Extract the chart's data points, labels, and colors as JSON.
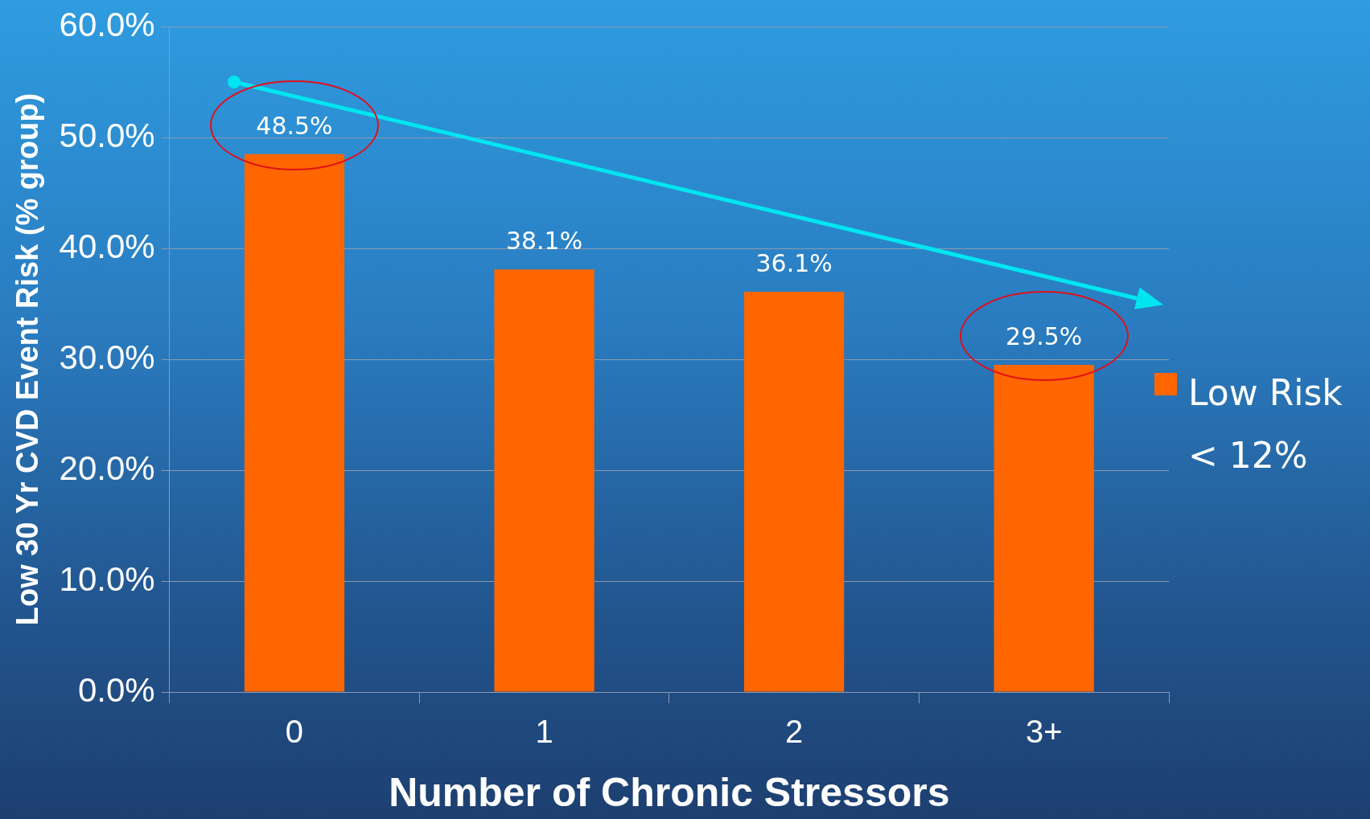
{
  "chart_data": {
    "type": "bar",
    "xlabel": "Number of Chronic Stressors",
    "ylabel": "Low 30 Yr CVD Event Risk (% group)",
    "categories": [
      "0",
      "1",
      "2",
      "3+"
    ],
    "series": [
      {
        "name": "Low Risk < 12%",
        "color": "#ff6600",
        "values": [
          48.5,
          38.1,
          36.1,
          29.5
        ]
      }
    ],
    "ylim": [
      0,
      60
    ],
    "yticks": [
      {
        "value": 0,
        "label": "0.0%"
      },
      {
        "value": 10,
        "label": "10.0%"
      },
      {
        "value": 20,
        "label": "20.0%"
      },
      {
        "value": 30,
        "label": "30.0%"
      },
      {
        "value": 40,
        "label": "40.0%"
      },
      {
        "value": 50,
        "label": "50.0%"
      },
      {
        "value": 60,
        "label": "60.0%"
      }
    ],
    "value_labels": [
      "48.5%",
      "38.1%",
      "36.1%",
      "29.5%"
    ],
    "grid": "y",
    "legend": "right"
  }
}
